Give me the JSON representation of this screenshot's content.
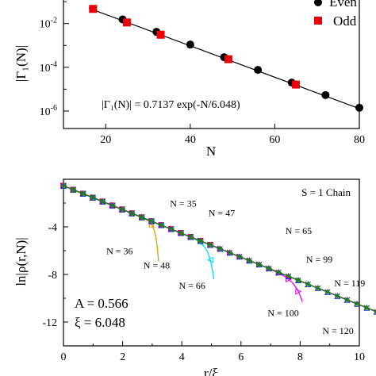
{
  "chart_data": [
    {
      "type": "scatter",
      "xlabel": "N",
      "ylabel": "|Γ₁(N)|",
      "xlim": [
        10,
        80
      ],
      "ylim": [
        -6.8,
        -0.85
      ],
      "y_scale": "log",
      "x_ticks": [
        "20",
        "40",
        "60",
        "80"
      ],
      "y_ticks": [
        {
          "mantissa": "10",
          "exponent": "-2",
          "value": -2
        },
        {
          "mantissa": "10",
          "exponent": "-4",
          "value": -4
        },
        {
          "mantissa": "10",
          "exponent": "-6",
          "value": -6
        }
      ],
      "legend": {
        "placement": "top-right",
        "entries": [
          "Even",
          "Odd"
        ]
      },
      "fit_text": "|Γ₁(N)| = 0.7137 exp(-N/6.048)",
      "fit": {
        "A": 0.7137,
        "xi": 6.048
      },
      "series": [
        {
          "name": "Even",
          "marker": "circle",
          "color": "#000000",
          "x": [
            24,
            32,
            40,
            48,
            56,
            64,
            72,
            80
          ],
          "y": [
            -1.81,
            -2.38,
            -2.96,
            -3.54,
            -4.12,
            -4.7,
            -5.27,
            -5.85
          ]
        },
        {
          "name": "Odd",
          "marker": "square",
          "color": "#e8000b",
          "x": [
            17,
            25,
            33,
            49,
            65
          ],
          "y": [
            -1.33,
            -1.95,
            -2.51,
            -3.63,
            -4.79
          ]
        }
      ]
    },
    {
      "type": "line",
      "xlabel": "r/ξ",
      "ylabel": "ln|ρ(r,N)|",
      "xlim": [
        0,
        10
      ],
      "ylim": [
        -14,
        0
      ],
      "x_ticks": [
        "0",
        "2",
        "4",
        "6",
        "8",
        "10"
      ],
      "y_ticks": [
        "-4",
        "-8",
        "-12"
      ],
      "title": "S = 1 Chain",
      "params_text": [
        "A = 0.566",
        "ξ = 6.048"
      ],
      "reference_line": {
        "slope": -1.0,
        "intercept": -0.55
      },
      "series": [
        {
          "name": "N = 35",
          "color": "#000000",
          "marker": "circle",
          "n": 35,
          "peak": 0.54,
          "ymin": -3.3,
          "label_x": 3.6,
          "label_y": -2.3
        },
        {
          "name": "N = 36",
          "color": "#e0a000",
          "marker": "triangle",
          "n": 36,
          "peak": 0.54,
          "ymin": -6.9,
          "label_x": 1.45,
          "label_y": -6.3
        },
        {
          "name": "N = 47",
          "color": "#e8000b",
          "marker": "square",
          "n": 47,
          "peak": 0.64,
          "ymin": -4.6,
          "label_x": 4.9,
          "label_y": -3.1
        },
        {
          "name": "N = 48",
          "color": "#00d8ff",
          "marker": "triangle-left",
          "n": 48,
          "peak": 0.64,
          "ymin": -8.4,
          "label_x": 2.7,
          "label_y": -7.5
        },
        {
          "name": "N = 65",
          "color": "#22dd22",
          "marker": "diamond",
          "n": 65,
          "peak": 0.74,
          "ymin": -6.2,
          "label_x": 7.5,
          "label_y": -4.6
        },
        {
          "name": "N = 66",
          "color": "#ee00ee",
          "marker": "triangle-right",
          "n": 66,
          "peak": 0.74,
          "ymin": -10.3,
          "label_x": 3.9,
          "label_y": -9.2
        },
        {
          "name": "N = 99",
          "color": "#0044ff",
          "marker": "triangle",
          "n": 99,
          "peak": 0.82,
          "ymin": -8.6,
          "label_x": 8.2,
          "label_y": -7.0
        },
        {
          "name": "N = 100",
          "color": "#8800aa",
          "marker": "plus",
          "n": 100,
          "peak": 0.82,
          "ymin": -13.1,
          "label_x": 6.9,
          "label_y": -11.5
        },
        {
          "name": "N = 119",
          "color": "#7a0a2a",
          "marker": "x",
          "n": 119,
          "peak": 0.86,
          "ymin": -9.9,
          "label_x": 9.15,
          "label_y": -9.0
        },
        {
          "name": "N = 120",
          "color": "#208020",
          "marker": "star",
          "n": 120,
          "peak": 0.86,
          "ymin": -14.0,
          "label_x": 8.75,
          "label_y": -13.0
        }
      ]
    }
  ]
}
